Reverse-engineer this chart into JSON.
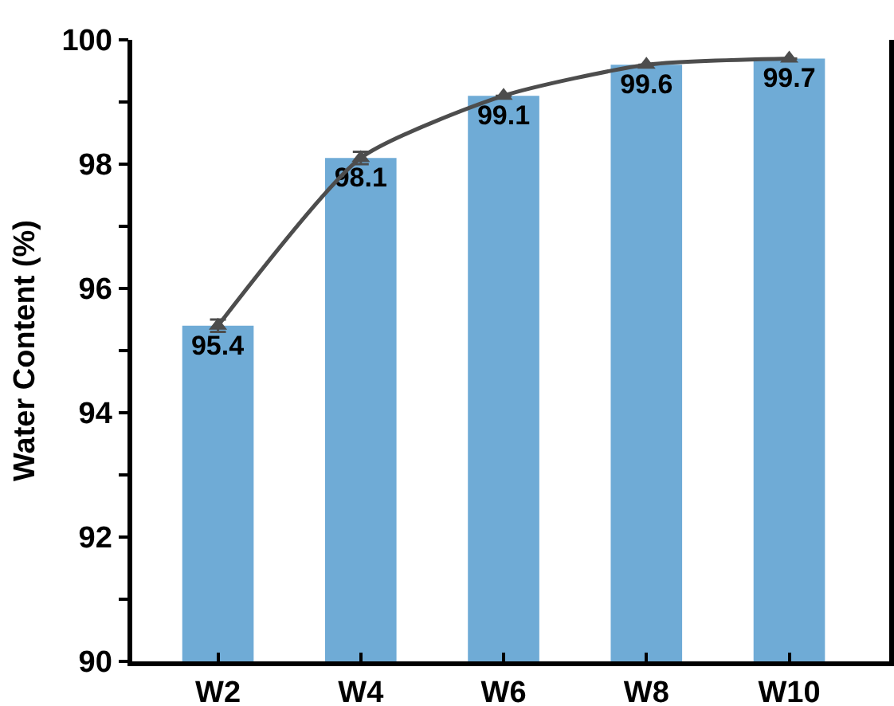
{
  "chart_data": {
    "type": "bar",
    "ylabel": "Water Content (%)",
    "categories": [
      "W2",
      "W4",
      "W6",
      "W8",
      "W10"
    ],
    "series": [
      {
        "color": "#6fabd6",
        "values": [
          95.4,
          98.1,
          99.1,
          99.6,
          99.7
        ],
        "value_labels": [
          "95.4",
          "98.1",
          "99.1",
          "99.6",
          "99.7"
        ]
      },
      {
        "type": "line",
        "color": "#4d4d4d",
        "values": [
          95.4,
          98.1,
          99.1,
          99.6,
          99.7
        ],
        "errors": [
          0.1,
          0.1,
          null,
          null,
          null
        ]
      }
    ],
    "marker": "triangle",
    "grid": false,
    "ylim": [
      90,
      100
    ],
    "yticks": [
      90,
      {
        "value": 91,
        "label": null
      },
      92,
      {
        "value": 93,
        "label": null
      },
      94,
      {
        "value": 95,
        "label": null
      },
      96,
      {
        "value": 97,
        "label": null
      },
      98,
      {
        "value": 99,
        "label": null
      },
      100
    ]
  }
}
